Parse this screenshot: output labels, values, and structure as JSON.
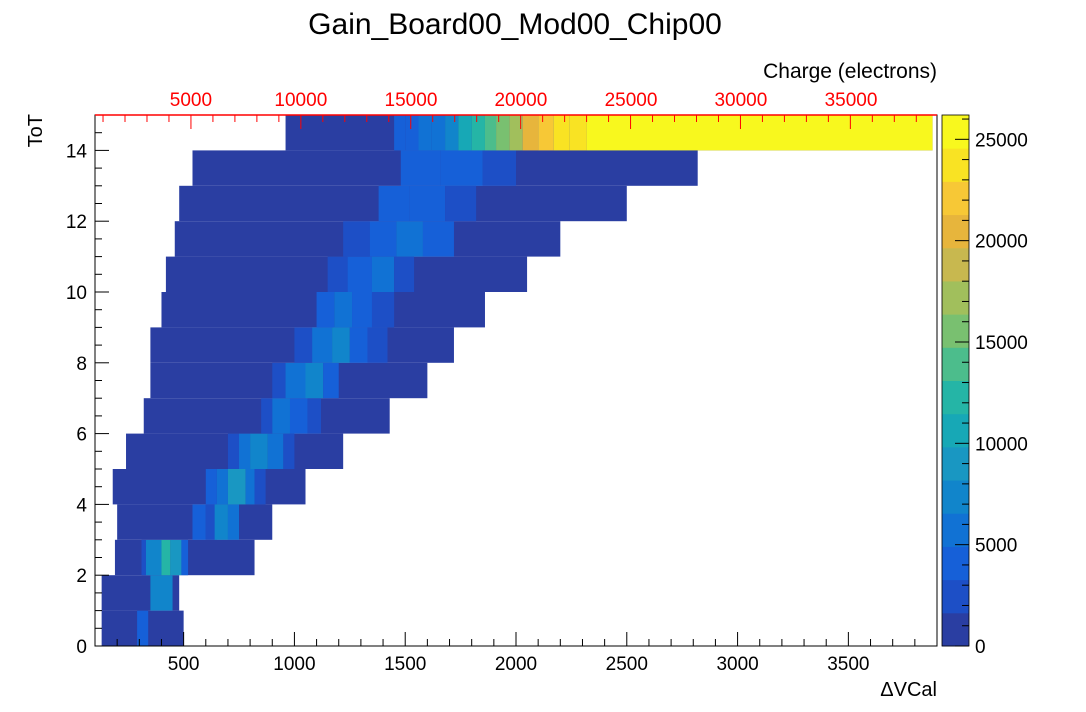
{
  "chart_data": {
    "type": "heatmap",
    "title": "Gain_Board00_Mod00_Chip00",
    "xlabel": "ΔVCal",
    "ylabel": "ToT",
    "x2label": "Charge (electrons)",
    "xlim": [
      100,
      3900
    ],
    "ylim": [
      0,
      15
    ],
    "zlim": [
      0,
      26200
    ],
    "x_ticks": [
      "500",
      "1000",
      "1500",
      "2000",
      "2500",
      "3000",
      "3500"
    ],
    "x_tick_values": [
      500,
      1000,
      1500,
      2000,
      2500,
      3000,
      3500
    ],
    "y_ticks": [
      "0",
      "2",
      "4",
      "6",
      "8",
      "10",
      "12",
      "14"
    ],
    "y_tick_values": [
      0,
      2,
      4,
      6,
      8,
      10,
      12,
      14
    ],
    "x2_ticks": [
      "5000",
      "10000",
      "15000",
      "20000",
      "25000",
      "30000",
      "35000"
    ],
    "x2_tick_values_in_dvcal": [
      533,
      1029,
      1526,
      2022,
      2519,
      3015,
      3512
    ],
    "colorbar_ticks": [
      "0",
      "5000",
      "10000",
      "15000",
      "20000",
      "25000"
    ],
    "colorbar_tick_values": [
      0,
      5000,
      10000,
      15000,
      20000,
      25000
    ],
    "palette": [
      "#2a3ea2",
      "#1d4fc6",
      "#1660d8",
      "#1172d4",
      "#1185cb",
      "#1997c2",
      "#17a8b6",
      "#25b5a6",
      "#4cbd8c",
      "#79c070",
      "#a1bf5c",
      "#c8b84f",
      "#e7b53c",
      "#f7c836",
      "#f9e323",
      "#f8f81e"
    ],
    "x2_axis_color": "#ff0000",
    "bin_x_start": 100,
    "bin_x_width": 63.5,
    "bin_y_width": 1,
    "note_rows": "each row r covers ToT [r, r+1); bins listed as [x_from, x_to, value]",
    "rows": [
      [
        [
          130,
          500,
          600
        ],
        [
          290,
          340,
          4500
        ]
      ],
      [
        [
          130,
          480,
          700
        ],
        [
          350,
          450,
          8000
        ]
      ],
      [
        [
          190,
          820,
          800
        ],
        [
          310,
          330,
          2500
        ],
        [
          330,
          400,
          7000
        ],
        [
          400,
          440,
          13000
        ],
        [
          440,
          490,
          9000
        ],
        [
          490,
          520,
          3500
        ]
      ],
      [
        [
          200,
          900,
          700
        ],
        [
          540,
          600,
          4500
        ],
        [
          600,
          650,
          2500
        ],
        [
          640,
          700,
          8000
        ],
        [
          700,
          750,
          6500
        ]
      ],
      [
        [
          180,
          1050,
          700
        ],
        [
          600,
          650,
          3500
        ],
        [
          650,
          700,
          6500
        ],
        [
          700,
          780,
          9000
        ],
        [
          780,
          820,
          5500
        ],
        [
          820,
          870,
          3000
        ]
      ],
      [
        [
          240,
          1220,
          700
        ],
        [
          700,
          750,
          3000
        ],
        [
          750,
          800,
          5500
        ],
        [
          800,
          880,
          8000
        ],
        [
          880,
          950,
          5000
        ],
        [
          950,
          1000,
          3000
        ]
      ],
      [
        [
          320,
          1430,
          700
        ],
        [
          850,
          900,
          3000
        ],
        [
          900,
          980,
          6000
        ],
        [
          980,
          1060,
          4000
        ],
        [
          1060,
          1120,
          2500
        ]
      ],
      [
        [
          350,
          1600,
          700
        ],
        [
          900,
          960,
          3000
        ],
        [
          960,
          1050,
          5500
        ],
        [
          1050,
          1130,
          7000
        ],
        [
          1130,
          1200,
          3500
        ]
      ],
      [
        [
          350,
          1720,
          700
        ],
        [
          1000,
          1080,
          3000
        ],
        [
          1080,
          1170,
          5000
        ],
        [
          1170,
          1250,
          7000
        ],
        [
          1250,
          1330,
          4500
        ],
        [
          1330,
          1420,
          2500
        ]
      ],
      [
        [
          400,
          1860,
          700
        ],
        [
          1100,
          1180,
          3500
        ],
        [
          1180,
          1260,
          5000
        ],
        [
          1260,
          1350,
          4000
        ],
        [
          1350,
          1450,
          2500
        ]
      ],
      [
        [
          420,
          2050,
          700
        ],
        [
          1150,
          1240,
          3000
        ],
        [
          1240,
          1350,
          4500
        ],
        [
          1350,
          1450,
          5500
        ],
        [
          1450,
          1540,
          3000
        ]
      ],
      [
        [
          460,
          2200,
          700
        ],
        [
          1220,
          1340,
          3000
        ],
        [
          1340,
          1460,
          4000
        ],
        [
          1460,
          1580,
          5500
        ],
        [
          1580,
          1720,
          3500
        ]
      ],
      [
        [
          480,
          2500,
          700
        ],
        [
          1380,
          1520,
          3500
        ],
        [
          1520,
          1680,
          4500
        ],
        [
          1680,
          1820,
          3000
        ]
      ],
      [
        [
          540,
          2820,
          700
        ],
        [
          1480,
          1660,
          4000
        ],
        [
          1660,
          1850,
          4500
        ],
        [
          1850,
          2000,
          3000
        ]
      ],
      [
        [
          960,
          3880,
          700
        ],
        [
          1450,
          1500,
          3500
        ],
        [
          1500,
          1560,
          4000
        ],
        [
          1560,
          1620,
          5000
        ],
        [
          1620,
          1680,
          6500
        ],
        [
          1680,
          1740,
          8000
        ],
        [
          1740,
          1800,
          10000
        ],
        [
          1800,
          1860,
          11500
        ],
        [
          1860,
          1910,
          13500
        ],
        [
          1910,
          1970,
          15500
        ],
        [
          1970,
          2030,
          18000
        ],
        [
          2030,
          2100,
          20000
        ],
        [
          2100,
          2170,
          21500
        ],
        [
          2170,
          2240,
          23000
        ],
        [
          2240,
          2320,
          24500
        ],
        [
          2320,
          3880,
          26000
        ]
      ]
    ]
  }
}
